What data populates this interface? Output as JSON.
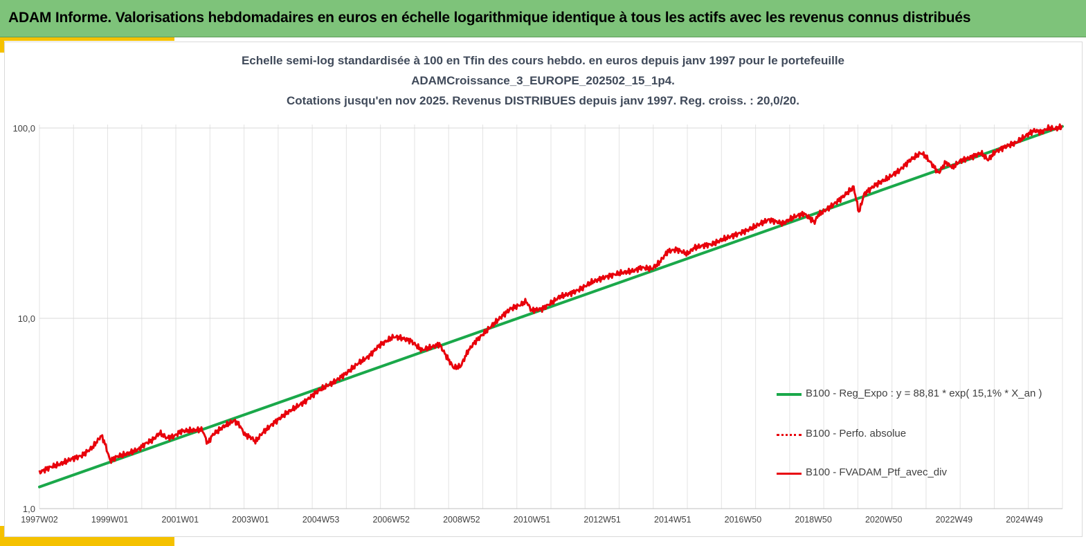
{
  "banner": {
    "title": "ADAM Informe. Valorisations hebdomadaires en euros en échelle logarithmique identique à tous les actifs avec les revenus connus distribués"
  },
  "colors": {
    "banner_bg": "#7ec37a",
    "accent": "#f5c100",
    "regression": "#1aa84a",
    "portfolio": "#e8000b",
    "perfo": "#e8000b",
    "grid": "#e3e3e3"
  },
  "chart_data": {
    "type": "line",
    "title_lines": [
      "Echelle semi-log standardisée à 100 en Tfin des cours hebdo.  en euros depuis janv 1997 pour le portefeuille",
      "ADAMCroissance_3_EUROPE_202502_15_1p4.",
      "Cotations jusqu'en nov 2025. Revenus DISTRIBUES depuis janv 1997. Reg. croiss. : 20,0/20."
    ],
    "y_scale": "log",
    "ylim": [
      1,
      100
    ],
    "y_ticks": [
      "1,0",
      "10,0",
      "100,0"
    ],
    "x_tick_labels": [
      "1997W02",
      "1999W01",
      "2001W01",
      "2003W01",
      "2004W53",
      "2006W52",
      "2008W52",
      "2010W51",
      "2012W51",
      "2014W51",
      "2016W50",
      "2018W50",
      "2020W50",
      "2022W49",
      "2024W49"
    ],
    "x_range": [
      1997.0,
      2025.9
    ],
    "grid": true,
    "legend_position": "right",
    "series": [
      {
        "name": "B100 - Reg_Expo : y = 88,81 * exp( 15,1% *  X_an )",
        "style": "solid-thick",
        "x": [
          1997.0,
          2025.9
        ],
        "y": [
          1.3,
          102
        ]
      },
      {
        "name": "B100 - Perfo. absolue",
        "style": "dotted",
        "x": [],
        "y": []
      },
      {
        "name": "B100 - FVADAM_Ptf_avec_div",
        "style": "solid",
        "x": [
          1997.0,
          1997.3,
          1997.6,
          1997.9,
          1998.2,
          1998.5,
          1998.75,
          1998.85,
          1999.0,
          1999.2,
          1999.5,
          1999.8,
          2000.0,
          2000.2,
          2000.4,
          2000.6,
          2000.8,
          2001.0,
          2001.3,
          2001.6,
          2001.75,
          2001.9,
          2002.2,
          2002.5,
          2002.65,
          2002.8,
          2003.0,
          2003.1,
          2003.3,
          2003.6,
          2004.0,
          2004.5,
          2004.9,
          2005.3,
          2005.7,
          2006.0,
          2006.3,
          2006.6,
          2007.0,
          2007.2,
          2007.5,
          2007.8,
          2008.0,
          2008.3,
          2008.5,
          2008.7,
          2008.9,
          2009.1,
          2009.3,
          2009.6,
          2010.0,
          2010.3,
          2010.6,
          2010.75,
          2010.9,
          2011.2,
          2011.5,
          2011.7,
          2012.0,
          2012.3,
          2012.6,
          2013.0,
          2013.4,
          2013.8,
          2014.0,
          2014.3,
          2014.5,
          2014.75,
          2015.0,
          2015.3,
          2015.5,
          2015.8,
          2016.0,
          2016.3,
          2016.6,
          2017.0,
          2017.3,
          2017.6,
          2018.0,
          2018.3,
          2018.6,
          2018.9,
          2019.0,
          2019.3,
          2019.6,
          2019.95,
          2020.0,
          2020.15,
          2020.3,
          2020.6,
          2021.0,
          2021.3,
          2021.6,
          2021.9,
          2022.0,
          2022.2,
          2022.4,
          2022.6,
          2022.8,
          2023.0,
          2023.3,
          2023.6,
          2023.8,
          2024.0,
          2024.3,
          2024.6,
          2024.9,
          2025.1,
          2025.3,
          2025.5,
          2025.7,
          2025.9
        ],
        "y": [
          1.55,
          1.65,
          1.72,
          1.82,
          1.9,
          2.1,
          2.42,
          2.2,
          1.78,
          1.88,
          1.95,
          2.05,
          2.2,
          2.3,
          2.5,
          2.35,
          2.4,
          2.55,
          2.58,
          2.6,
          2.2,
          2.45,
          2.7,
          2.9,
          2.75,
          2.45,
          2.35,
          2.25,
          2.5,
          2.8,
          3.2,
          3.65,
          4.2,
          4.6,
          5.2,
          5.8,
          6.3,
          7.2,
          8.0,
          7.9,
          7.6,
          6.8,
          7.0,
          7.3,
          6.3,
          5.5,
          5.6,
          6.7,
          7.5,
          8.5,
          10.0,
          11.2,
          11.8,
          12.3,
          11.0,
          11.2,
          12.2,
          13.0,
          13.5,
          14.3,
          15.5,
          16.5,
          17.3,
          17.8,
          18.5,
          18.2,
          19.5,
          22.5,
          23.0,
          21.8,
          23.5,
          24.2,
          24.5,
          26.0,
          27.2,
          29.0,
          31.0,
          33.0,
          31.5,
          34.0,
          35.5,
          32.0,
          35.0,
          38.0,
          42.0,
          48.0,
          49.0,
          36.0,
          45.0,
          50.0,
          55.0,
          60.0,
          68.0,
          74.0,
          72.0,
          65.0,
          58.0,
          66.0,
          62.0,
          67.0,
          70.0,
          74.0,
          68.0,
          75.0,
          80.0,
          84.0,
          92.0,
          97.0,
          95.0,
          100.0,
          99.0,
          102.0
        ]
      }
    ]
  }
}
